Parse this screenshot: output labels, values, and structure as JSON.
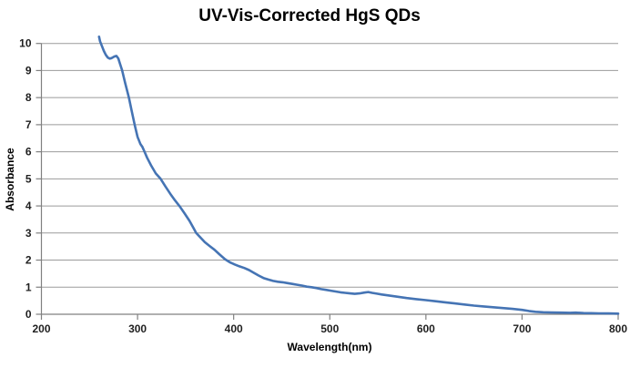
{
  "chart": {
    "title": "UV-Vis-Corrected HgS QDs",
    "xlabel": "Wavelength(nm)",
    "ylabel": "Absorbance"
  },
  "chart_data": {
    "type": "line",
    "title": "UV-Vis-Corrected HgS QDs",
    "xlabel": "Wavelength(nm)",
    "ylabel": "Absorbance",
    "xlim": [
      200,
      800
    ],
    "ylim": [
      0,
      10
    ],
    "x_ticks": [
      200,
      300,
      400,
      500,
      600,
      700,
      800
    ],
    "y_ticks": [
      0,
      1,
      2,
      3,
      4,
      5,
      6,
      7,
      8,
      9,
      10
    ],
    "grid": "horizontal-only",
    "legend": "none",
    "line_color": "#4574B4",
    "gridline_color": "#9B9B9B",
    "axis_color": "#808080",
    "tick_label_color": "#1f1f1f",
    "series": [
      {
        "name": "Absorbance",
        "points": [
          [
            260,
            10.25
          ],
          [
            261,
            10.08
          ],
          [
            263,
            9.9
          ],
          [
            265,
            9.72
          ],
          [
            267,
            9.58
          ],
          [
            269,
            9.48
          ],
          [
            271,
            9.44
          ],
          [
            273,
            9.46
          ],
          [
            276,
            9.52
          ],
          [
            278,
            9.54
          ],
          [
            280,
            9.44
          ],
          [
            282,
            9.22
          ],
          [
            284,
            9.0
          ],
          [
            287,
            8.55
          ],
          [
            291,
            8.0
          ],
          [
            294,
            7.5
          ],
          [
            297,
            7.0
          ],
          [
            300,
            6.55
          ],
          [
            303,
            6.28
          ],
          [
            305,
            6.18
          ],
          [
            307,
            6.02
          ],
          [
            310,
            5.78
          ],
          [
            314,
            5.5
          ],
          [
            319,
            5.2
          ],
          [
            324,
            5.0
          ],
          [
            329,
            4.72
          ],
          [
            334,
            4.45
          ],
          [
            339,
            4.2
          ],
          [
            344,
            3.98
          ],
          [
            349,
            3.72
          ],
          [
            354,
            3.45
          ],
          [
            358,
            3.2
          ],
          [
            361,
            3.0
          ],
          [
            365,
            2.85
          ],
          [
            370,
            2.66
          ],
          [
            375,
            2.52
          ],
          [
            380,
            2.38
          ],
          [
            385,
            2.22
          ],
          [
            391,
            2.03
          ],
          [
            396,
            1.92
          ],
          [
            401,
            1.84
          ],
          [
            406,
            1.77
          ],
          [
            411,
            1.71
          ],
          [
            416,
            1.63
          ],
          [
            421,
            1.53
          ],
          [
            426,
            1.43
          ],
          [
            431,
            1.34
          ],
          [
            436,
            1.28
          ],
          [
            441,
            1.23
          ],
          [
            446,
            1.2
          ],
          [
            451,
            1.18
          ],
          [
            456,
            1.15
          ],
          [
            461,
            1.12
          ],
          [
            466,
            1.09
          ],
          [
            471,
            1.06
          ],
          [
            476,
            1.02
          ],
          [
            481,
            1.0
          ],
          [
            486,
            0.97
          ],
          [
            491,
            0.93
          ],
          [
            496,
            0.9
          ],
          [
            501,
            0.87
          ],
          [
            506,
            0.84
          ],
          [
            511,
            0.81
          ],
          [
            516,
            0.79
          ],
          [
            521,
            0.77
          ],
          [
            526,
            0.755
          ],
          [
            531,
            0.77
          ],
          [
            536,
            0.8
          ],
          [
            540,
            0.82
          ],
          [
            544,
            0.79
          ],
          [
            549,
            0.76
          ],
          [
            554,
            0.73
          ],
          [
            560,
            0.7
          ],
          [
            570,
            0.65
          ],
          [
            580,
            0.6
          ],
          [
            590,
            0.56
          ],
          [
            600,
            0.52
          ],
          [
            610,
            0.48
          ],
          [
            620,
            0.44
          ],
          [
            630,
            0.4
          ],
          [
            640,
            0.36
          ],
          [
            650,
            0.32
          ],
          [
            660,
            0.29
          ],
          [
            670,
            0.26
          ],
          [
            680,
            0.23
          ],
          [
            690,
            0.2
          ],
          [
            700,
            0.16
          ],
          [
            707,
            0.12
          ],
          [
            714,
            0.09
          ],
          [
            722,
            0.075
          ],
          [
            731,
            0.065
          ],
          [
            740,
            0.06
          ],
          [
            750,
            0.055
          ],
          [
            756,
            0.06
          ],
          [
            764,
            0.045
          ],
          [
            772,
            0.04
          ],
          [
            780,
            0.035
          ],
          [
            790,
            0.03
          ],
          [
            800,
            0.025
          ]
        ]
      }
    ]
  }
}
